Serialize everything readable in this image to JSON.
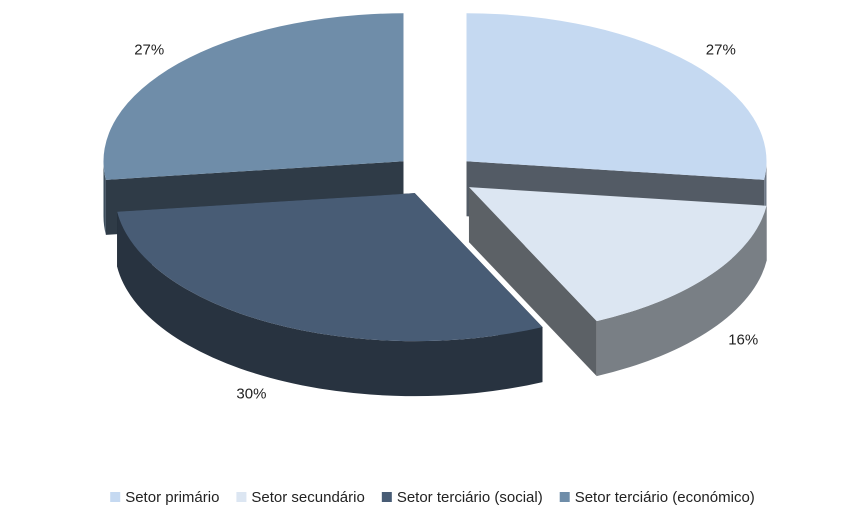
{
  "chart_data": {
    "type": "pie3d",
    "categories": [
      "Setor primário",
      "Setor secundário",
      "Setor terciário (social)",
      "Setor terciário (económico)"
    ],
    "values": [
      27,
      16,
      30,
      27
    ],
    "value_labels": [
      "27%",
      "16%",
      "30%",
      "27%"
    ],
    "colors": [
      "#c5d9f1",
      "#dce6f2",
      "#485c75",
      "#6f8da9"
    ],
    "legend": "bottom"
  }
}
